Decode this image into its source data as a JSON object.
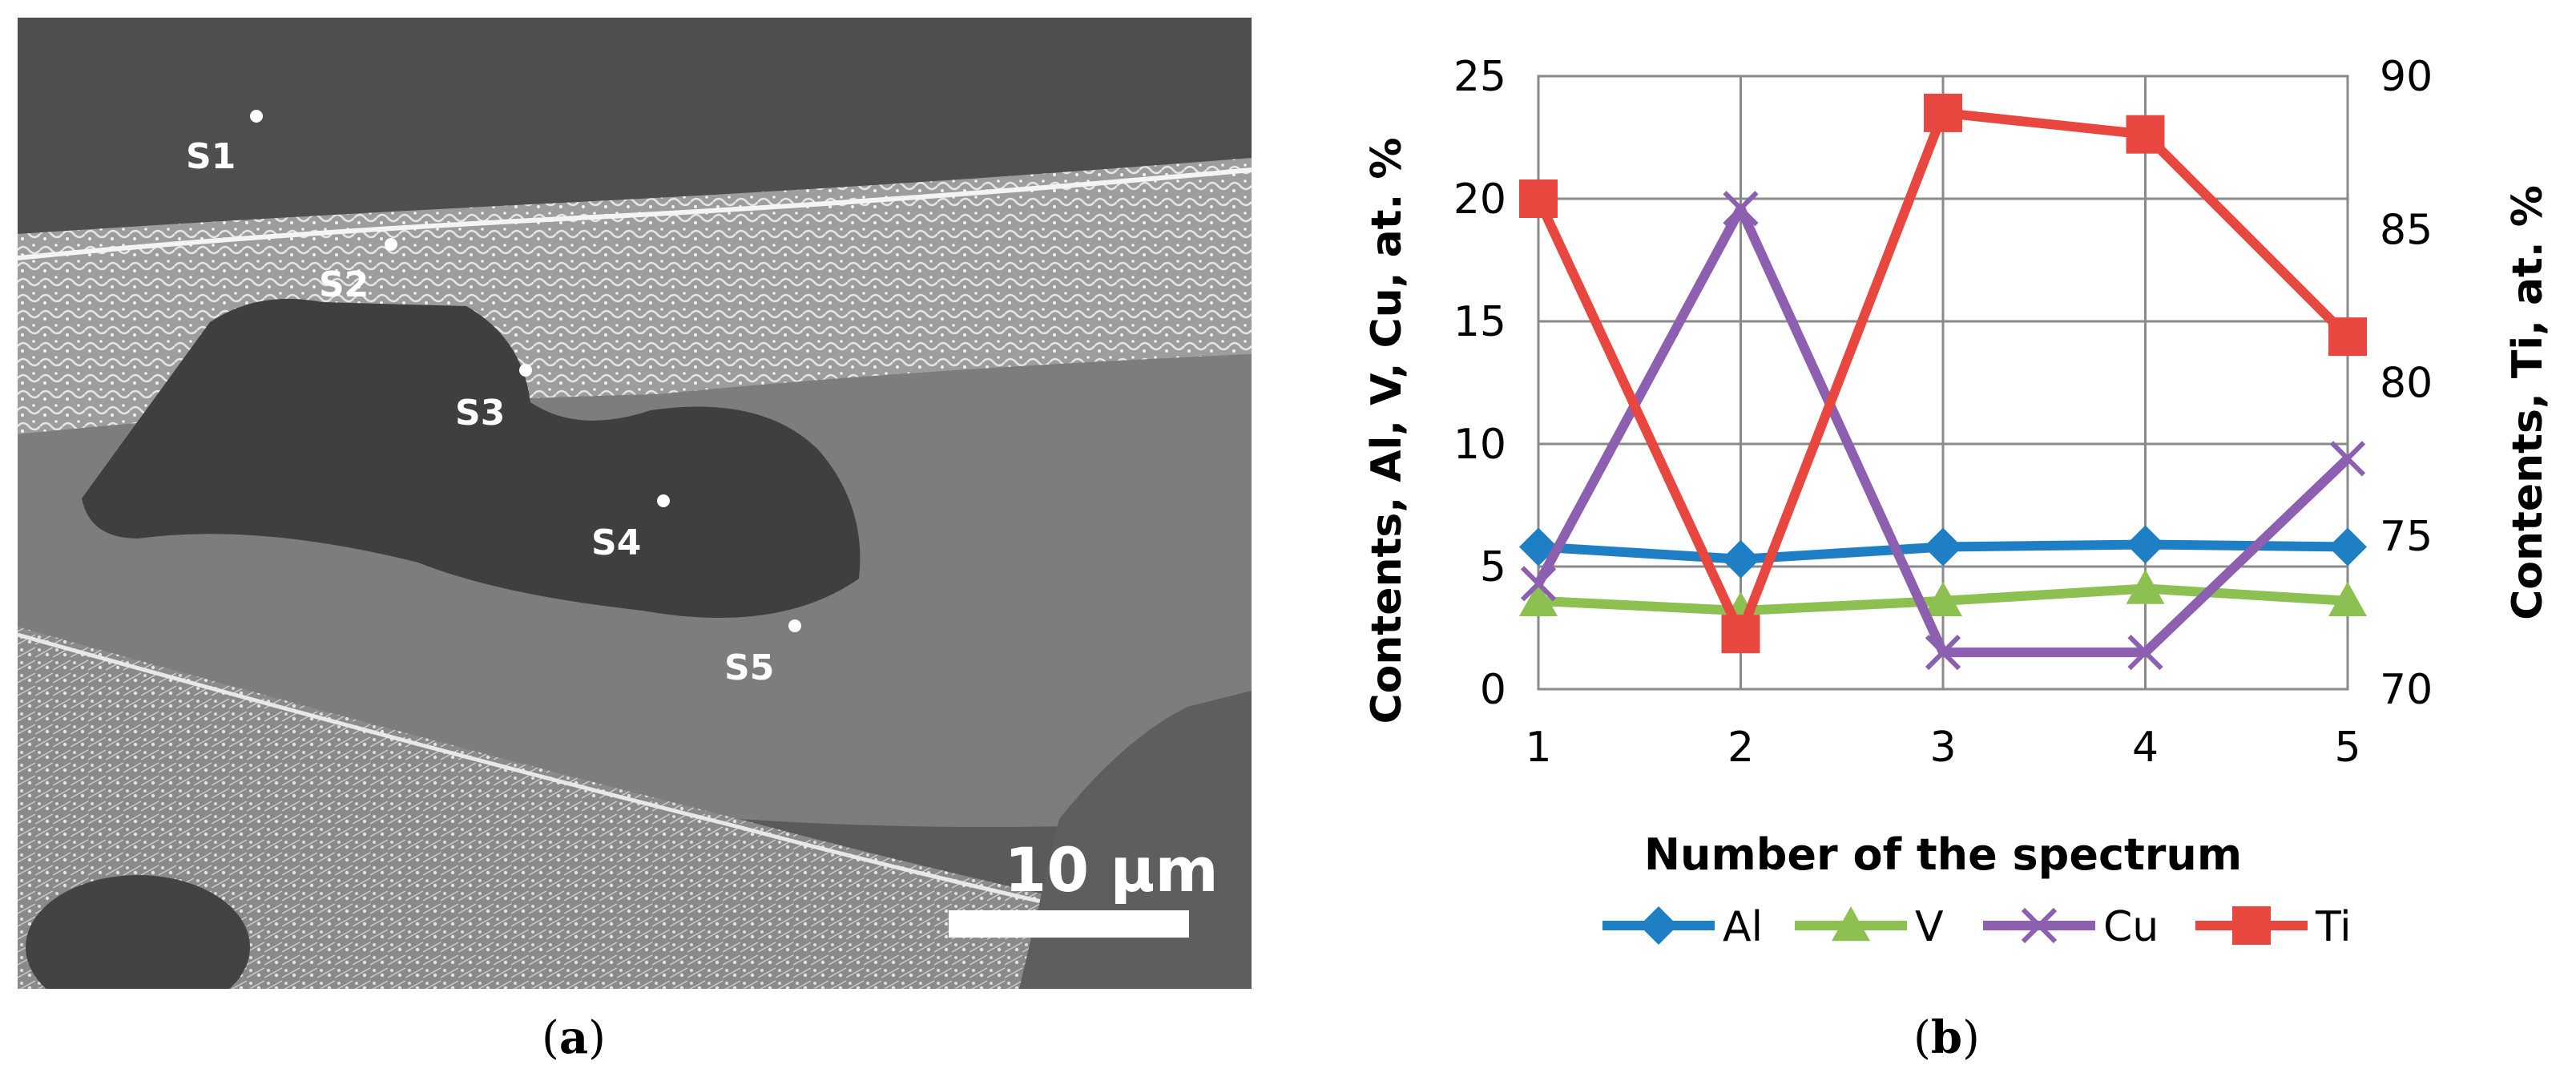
{
  "panel_a": {
    "caption_letter": "a",
    "scale_bar_label": "10 µm",
    "spectrum_points": [
      "S1",
      "S2",
      "S3",
      "S4",
      "S5"
    ]
  },
  "panel_b": {
    "caption_letter": "b"
  },
  "chart_data": {
    "type": "line",
    "x": [
      1,
      2,
      3,
      4,
      5
    ],
    "xlabel": "Number of the spectrum",
    "ylabel": "Contents, Al, V, Cu, at. %",
    "y2label": "Contents,  Ti, at. %",
    "ylim": [
      0,
      25
    ],
    "y2lim": [
      70,
      90
    ],
    "yticks": [
      0,
      5,
      10,
      15,
      20,
      25
    ],
    "y2ticks": [
      70,
      75,
      80,
      85,
      90
    ],
    "grid": true,
    "legend_position": "bottom",
    "series": [
      {
        "name": "Al",
        "axis": "left",
        "values": [
          5.8,
          5.3,
          5.8,
          5.9,
          5.8
        ],
        "color": "#1f7fc4",
        "marker": "diamond"
      },
      {
        "name": "V",
        "axis": "left",
        "values": [
          3.6,
          3.2,
          3.6,
          4.1,
          3.6
        ],
        "color": "#8cc152",
        "marker": "triangle"
      },
      {
        "name": "Cu",
        "axis": "left",
        "values": [
          4.3,
          19.6,
          1.5,
          1.5,
          9.4
        ],
        "color": "#8d5fb0",
        "marker": "x"
      },
      {
        "name": "Ti",
        "axis": "right",
        "values": [
          86.0,
          71.8,
          88.8,
          88.1,
          81.5
        ],
        "color": "#e8473f",
        "marker": "square"
      }
    ]
  }
}
